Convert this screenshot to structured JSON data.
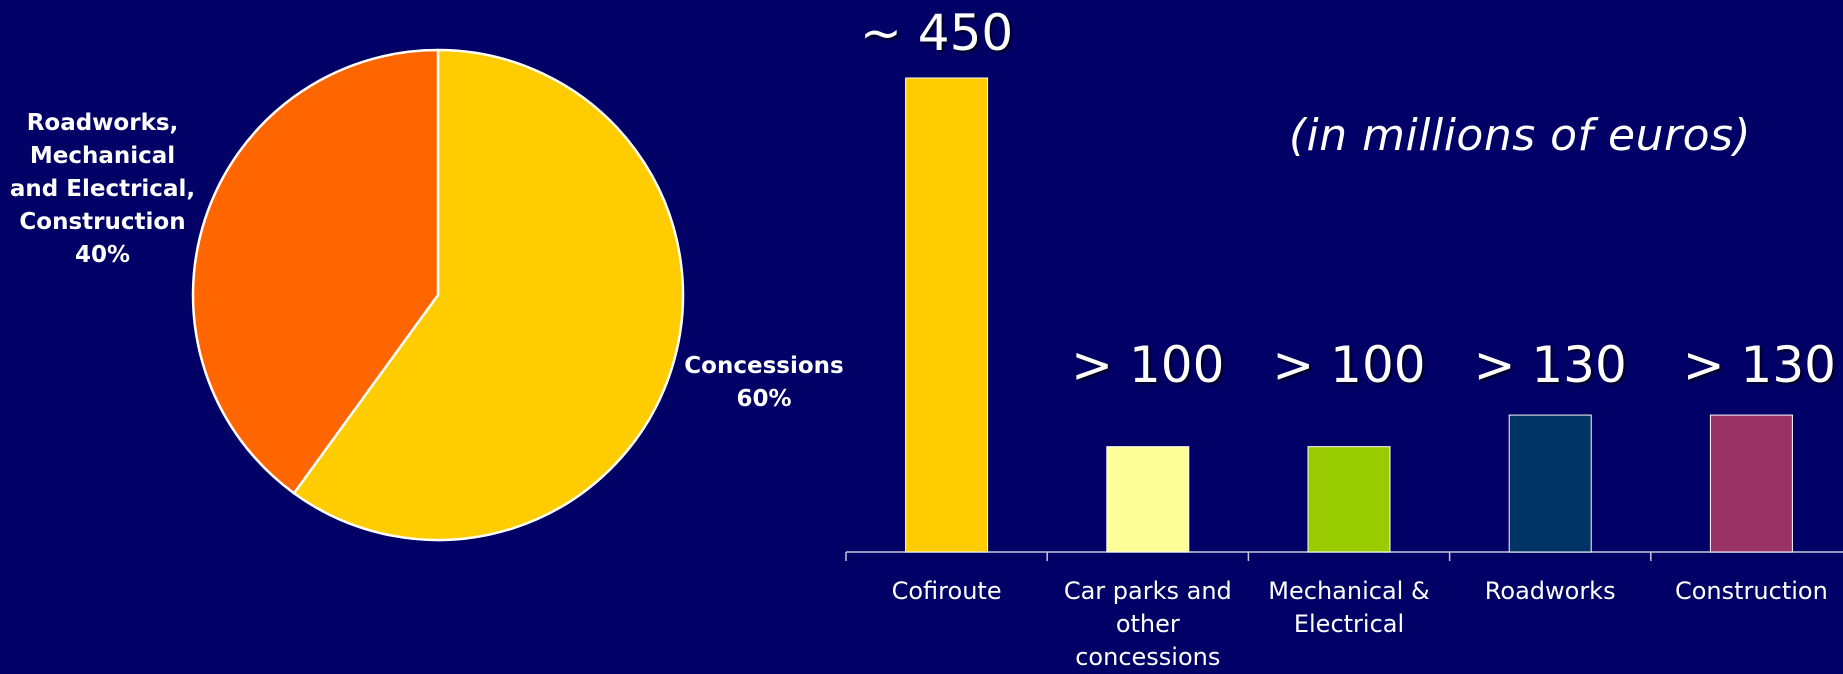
{
  "chart_data": [
    {
      "type": "pie",
      "slices": [
        {
          "label_lines": [
            "Concessions",
            "60%"
          ],
          "value": 60,
          "color": "#ffcc00"
        },
        {
          "label_lines": [
            "Roadworks,",
            "Mechanical",
            "and Electrical,",
            "Construction",
            "40%"
          ],
          "value": 40,
          "color": "#ff6600"
        }
      ],
      "edge_color": "#ffffff"
    },
    {
      "type": "bar",
      "unit_note": "(in millions of euros)",
      "categories": [
        {
          "lines": [
            "Cofiroute"
          ]
        },
        {
          "lines": [
            "Car parks and",
            "other",
            "concessions"
          ]
        },
        {
          "lines": [
            "Mechanical &",
            "Electrical"
          ]
        },
        {
          "lines": [
            "Roadworks"
          ]
        },
        {
          "lines": [
            "Construction"
          ]
        }
      ],
      "values": [
        450,
        100,
        100,
        130,
        130
      ],
      "value_labels": [
        "~ 450",
        "> 100",
        "> 100",
        "> 130",
        "> 130"
      ],
      "colors": [
        "#ffcc00",
        "#ffff99",
        "#99cc00",
        "#003366",
        "#993366"
      ],
      "ylim": [
        0,
        450
      ]
    }
  ]
}
